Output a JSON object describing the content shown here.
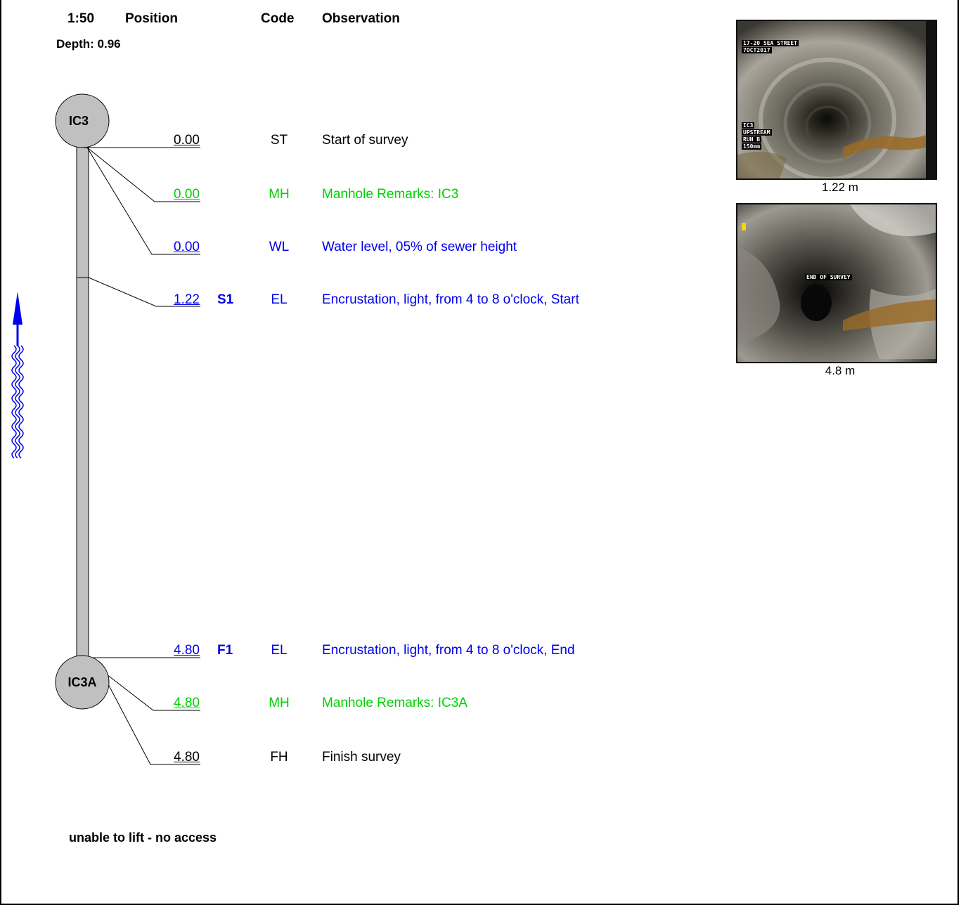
{
  "header": {
    "scale": "1:50",
    "position": "Position",
    "code": "Code",
    "observation": "Observation",
    "depth": "Depth: 0.96"
  },
  "manholes": {
    "start": "IC3",
    "finish": "IC3A"
  },
  "observations": [
    {
      "position": "0.00",
      "section": "",
      "code": "ST",
      "text": "Start of survey",
      "color": "#000000"
    },
    {
      "position": "0.00",
      "section": "",
      "code": "MH",
      "text": "Manhole Remarks: IC3",
      "color": "#00d000"
    },
    {
      "position": "0.00",
      "section": "",
      "code": "WL",
      "text": "Water level, 05% of sewer height",
      "color": "#0000ee"
    },
    {
      "position": "1.22",
      "section": "S1",
      "code": "EL",
      "text": "Encrustation, light, from 4 to 8 o'clock, Start",
      "color": "#0000ee"
    },
    {
      "position": "4.80",
      "section": "F1",
      "code": "EL",
      "text": "Encrustation, light, from 4 to 8 o'clock, End",
      "color": "#0000ee"
    },
    {
      "position": "4.80",
      "section": "",
      "code": "MH",
      "text": "Manhole Remarks: IC3A",
      "color": "#00d000"
    },
    {
      "position": "4.80",
      "section": "",
      "code": "FH",
      "text": "Finish survey",
      "color": "#000000"
    }
  ],
  "photos": [
    {
      "caption": "1.22 m",
      "overlay_top": [
        "17-20 SEA STREET",
        "7OCT2017"
      ],
      "overlay_bottom": [
        "IC3",
        "UPSTREAM",
        "RUN B",
        "150mm"
      ]
    },
    {
      "caption": "4.8 m",
      "overlay_center": "END OF SURVEY"
    }
  ],
  "footer_note": "unable to lift - no access",
  "flow_direction_icon": "flow-up-arrow-icon"
}
